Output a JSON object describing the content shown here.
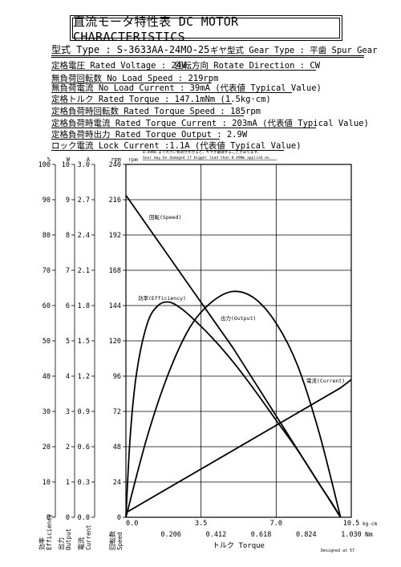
{
  "sheet": {
    "title": "直流モータ特性表 DC MOTOR CHARACTERISTICS",
    "type_line": "型式 Type : S-3633AA-24MO-25",
    "gear_type": "ギヤ型式 Gear Type : 平歯  Spur Gear",
    "rated_voltage": "定格電圧 Rated Voltage : 24V",
    "rotate_direction": "回転方向 Rotate Direction : CW",
    "no_load_speed": "無負荷回転数 No Load Speed : 219rpm",
    "no_load_current": "無負荷電流 No Load Current : 39mA (代表値 Typical Value)",
    "rated_torque": "定格トルク Rated Torque : 147.1mNm (1.5kg·cm)",
    "rated_torque_speed": "定格負荷時回転数 Rated Torque Speed : 185rpm",
    "rated_torque_current": "定格負荷時電流 Rated Torque Current : 203mA (代表値 Typical Value)",
    "rated_torque_output": "定格負荷時出力 Rated Torque Output : 2.9W",
    "lock_current": "ロック電流 Lock Current :1.1A (代表値 Typical Value)",
    "warning_jp": "0.49Nm より大きい負荷がかかると、ギヤが破損することがあります。",
    "warning_en": "Gear may be damaged if bigger load than 0.49Nm applied on.",
    "designed_by": "Designed at 57"
  },
  "chart_data": {
    "type": "line",
    "xlabel": "トルク Torque",
    "x_unit_top": "kg·cm",
    "x_unit_bottom": "Nm",
    "x_ticks_kgcm": [
      "0.0",
      "3.5",
      "7.0",
      "10.5"
    ],
    "x_ticks_nm": [
      "0.206",
      "0.412",
      "0.618",
      "0.824",
      "1.030"
    ],
    "x_range_kgcm": [
      0,
      10.5
    ],
    "grid": true,
    "axes": [
      {
        "name": "efficiency",
        "unit": "%",
        "label_jp": "効率",
        "label_en": "Efficiency",
        "range": [
          0,
          100
        ],
        "ticks": [
          "0",
          "10",
          "20",
          "30",
          "40",
          "50",
          "60",
          "70",
          "80",
          "90",
          "100"
        ]
      },
      {
        "name": "output",
        "unit": "W",
        "label_jp": "出力",
        "label_en": "Output",
        "range": [
          0,
          10
        ],
        "ticks": [
          "0",
          "1",
          "2",
          "3",
          "4",
          "5",
          "6",
          "7",
          "8",
          "9",
          "10"
        ]
      },
      {
        "name": "current",
        "unit": "A",
        "label_jp": "電流",
        "label_en": "Current",
        "range": [
          0,
          3
        ],
        "ticks": [
          "0.0",
          "0.3",
          "0.6",
          "0.9",
          "1.2",
          "1.5",
          "1.8",
          "2.1",
          "2.4",
          "2.7",
          "3.0"
        ]
      },
      {
        "name": "speed",
        "unit": "rpm",
        "label_jp": "回転数",
        "label_en": "Speed",
        "range": [
          0,
          240
        ],
        "ticks": [
          "0",
          "24",
          "48",
          "72",
          "96",
          "120",
          "144",
          "168",
          "192",
          "216",
          "240"
        ]
      }
    ],
    "series": [
      {
        "name": "回転(Speed)",
        "axis": "speed",
        "points": [
          [
            0,
            219
          ],
          [
            5,
            115
          ],
          [
            10.0,
            0
          ]
        ]
      },
      {
        "name": "電流(Current)",
        "axis": "current",
        "points": [
          [
            0,
            0.039
          ],
          [
            10.0,
            1.1
          ],
          [
            10.5,
            1.17
          ]
        ]
      },
      {
        "name": "効率(Efficiency)",
        "axis": "efficiency",
        "points": [
          [
            0,
            0
          ],
          [
            0.2,
            23
          ],
          [
            0.5,
            41
          ],
          [
            1.0,
            55
          ],
          [
            1.5,
            60
          ],
          [
            2.0,
            61
          ],
          [
            2.5,
            59.5
          ],
          [
            3.0,
            57
          ],
          [
            4.0,
            51
          ],
          [
            5.0,
            44
          ],
          [
            6.0,
            36
          ],
          [
            7.0,
            27.5
          ],
          [
            8.0,
            19
          ],
          [
            9.0,
            9.5
          ],
          [
            9.6,
            4
          ],
          [
            10.0,
            0
          ]
        ]
      },
      {
        "name": "出力(Output)",
        "axis": "output",
        "points": [
          [
            0,
            0
          ],
          [
            1,
            2.3
          ],
          [
            2,
            4.1
          ],
          [
            3,
            5.4
          ],
          [
            4,
            6.1
          ],
          [
            5,
            6.4
          ],
          [
            6,
            6.2
          ],
          [
            7,
            5.5
          ],
          [
            8,
            4.3
          ],
          [
            9,
            2.4
          ],
          [
            10,
            0
          ]
        ]
      }
    ]
  }
}
